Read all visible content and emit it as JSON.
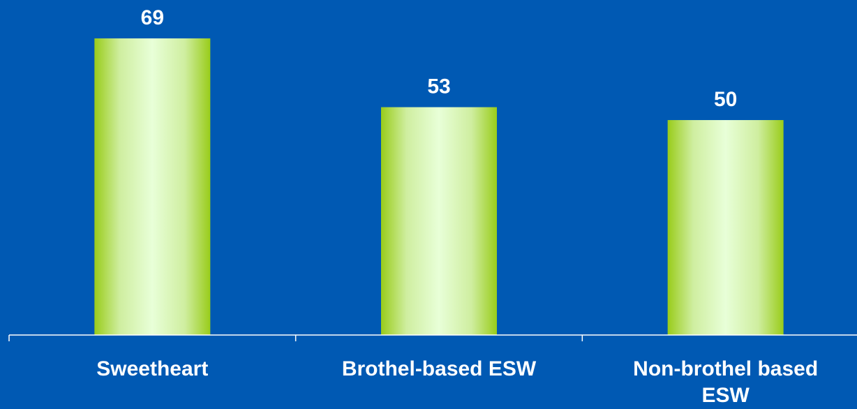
{
  "chart_data": {
    "type": "bar",
    "categories": [
      [
        "Sweetheart"
      ],
      [
        "Brothel-based ESW"
      ],
      [
        "Non-brothel based",
        "ESW"
      ]
    ],
    "values": [
      69,
      53,
      50
    ],
    "ylim": [
      0,
      75
    ],
    "grid": false,
    "legend": "none",
    "data_labels": true
  },
  "colors": {
    "background": "#0059b3",
    "bar_edge": "#99cc1a",
    "bar_center": "#e8ffd8",
    "axis": "#ffffff",
    "text": "#ffffff"
  }
}
